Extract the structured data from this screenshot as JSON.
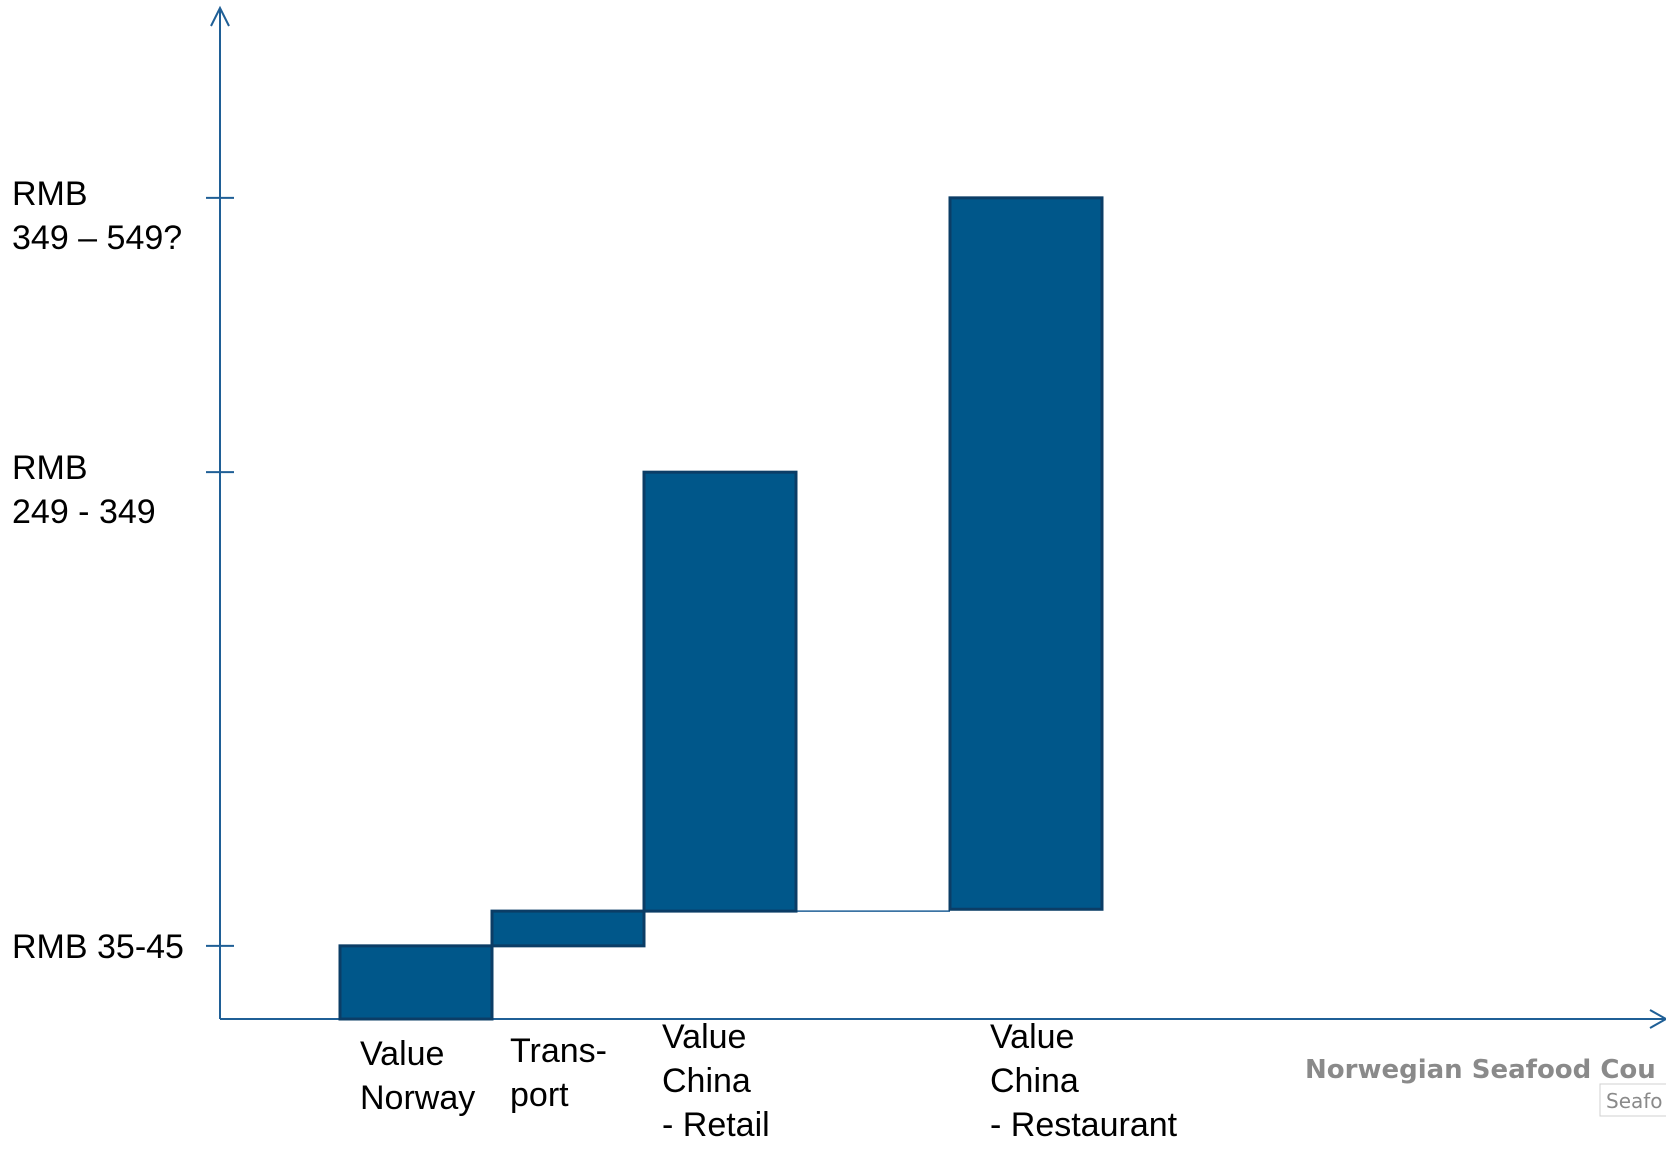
{
  "colors": {
    "bar_fill": "#00578A",
    "bar_stroke": "#0B3D66",
    "axis": "#1F5F96",
    "logo_text": "#8a8a8a"
  },
  "chart_data": {
    "type": "bar",
    "subtype": "waterfall",
    "title": "",
    "xlabel": "",
    "ylabel": "",
    "categories": [
      [
        "Value",
        "Norway"
      ],
      [
        "Trans-",
        "port"
      ],
      [
        "Value",
        "China",
        "- Retail"
      ],
      [
        "Value",
        "China",
        "- Restaurant"
      ]
    ],
    "y_tick_labels": [
      [
        "RMB 35-45"
      ],
      [
        "RMB",
        "249 - 349"
      ],
      [
        "RMB",
        "349 – 549?"
      ]
    ],
    "y_ticks": [
      40,
      299,
      449
    ],
    "bars": [
      {
        "category_index": 0,
        "base": 0,
        "top": 40
      },
      {
        "category_index": 1,
        "base": 40,
        "top": 59
      },
      {
        "category_index": 2,
        "base": 59,
        "top": 299
      },
      {
        "category_index": 3,
        "base": 60,
        "top": 449
      }
    ],
    "connector": {
      "from_bar": 2,
      "to_bar": 3,
      "level": 59
    },
    "ylim": [
      0,
      520
    ],
    "grid": false,
    "legend": false
  },
  "logo": {
    "main": "Norwegian Seafood Cou",
    "sub": "Seafo"
  }
}
